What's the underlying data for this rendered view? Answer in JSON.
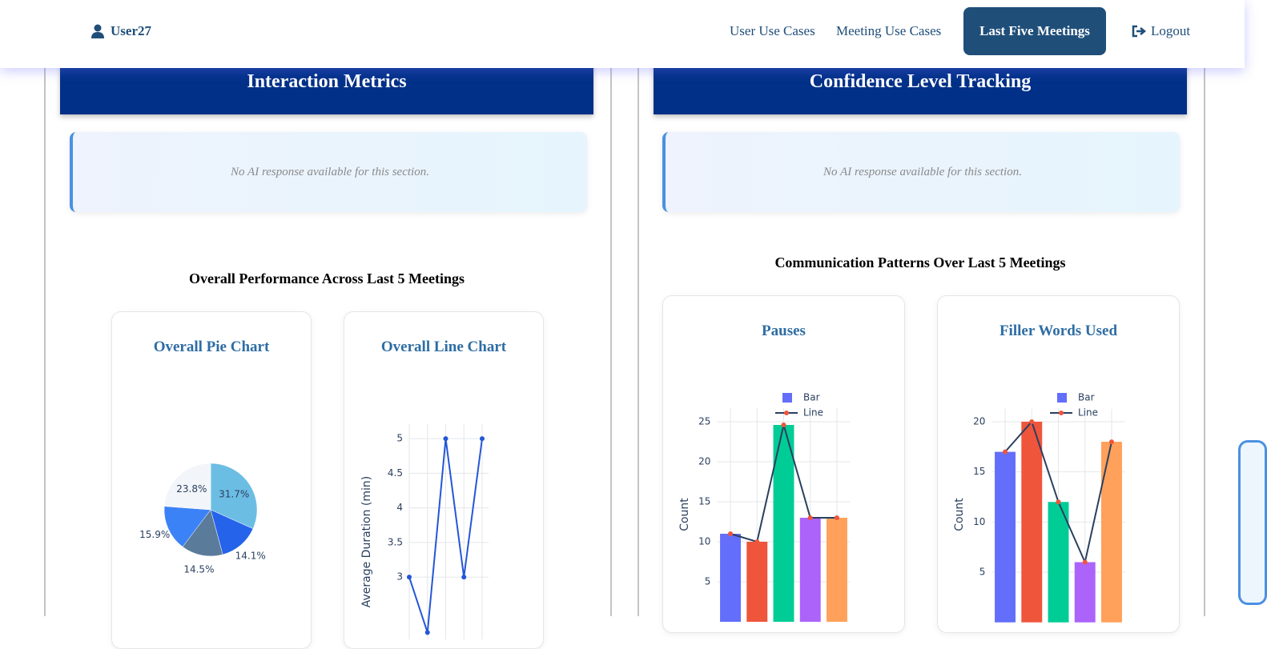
{
  "nav": {
    "user": "User27",
    "links": [
      "User Use Cases",
      "Meeting Use Cases",
      "Last Five Meetings"
    ],
    "logout": "Logout"
  },
  "panels": [
    {
      "title": "Interaction Metrics",
      "note": "No AI response available for this section.",
      "subtitle": "Overall Performance Across Last 5 Meetings",
      "charts": [
        {
          "type": "pie",
          "title": "Overall Pie Chart",
          "values": [
            31.7,
            14.1,
            14.5,
            15.9,
            23.8
          ],
          "value_labels": [
            "31.7%",
            "14.1%",
            "14.5%",
            "15.9%",
            "23.8%"
          ],
          "colors": [
            "#6cbde4",
            "#2563eb",
            "#5b7b9b",
            "#3b82f6",
            "#f2f5f9"
          ]
        },
        {
          "type": "line",
          "title": "Overall Line Chart",
          "y_label": "Average Duration (min)",
          "values": [
            3,
            2.2,
            5,
            3,
            5
          ],
          "color": "#2456d6",
          "ylim": [
            2.1,
            5.21
          ],
          "yticks": [
            3,
            3.5,
            4,
            4.5,
            5
          ],
          "grid": true
        }
      ]
    },
    {
      "title": "Confidence Level Tracking",
      "note": "No AI response available for this section.",
      "subtitle": "Communication Patterns Over Last 5 Meetings",
      "charts": [
        {
          "type": "combo",
          "title": "Pauses",
          "y_label": "Count",
          "series": [
            {
              "name": "Bar",
              "color": "#636efa",
              "colors": [
                "#636efa",
                "#ef553b",
                "#00cc96",
                "#ab63fa",
                "#ffa15a"
              ],
              "values": [
                11,
                10,
                24.6,
                13,
                13
              ]
            },
            {
              "name": "Line",
              "color": "#2a3f5f",
              "marker_color": "#ef553b",
              "values": [
                11,
                10,
                24.6,
                13,
                13
              ]
            }
          ],
          "ylim": [
            0,
            26.7
          ],
          "yticks": [
            5,
            10,
            15,
            20,
            25
          ],
          "grid": true
        },
        {
          "type": "combo",
          "title": "Filler Words Used",
          "y_label": "Count",
          "series": [
            {
              "name": "Bar",
              "color": "#636efa",
              "colors": [
                "#636efa",
                "#ef553b",
                "#00cc96",
                "#ab63fa",
                "#ffa15a"
              ],
              "values": [
                17,
                20,
                12,
                6,
                18
              ]
            },
            {
              "name": "Line",
              "color": "#2a3f5f",
              "marker_color": "#ef553b",
              "values": [
                17,
                20,
                12,
                6,
                18
              ]
            }
          ],
          "ylim": [
            0,
            21.3
          ],
          "yticks": [
            5,
            10,
            15,
            20
          ],
          "grid": true
        }
      ]
    }
  ]
}
